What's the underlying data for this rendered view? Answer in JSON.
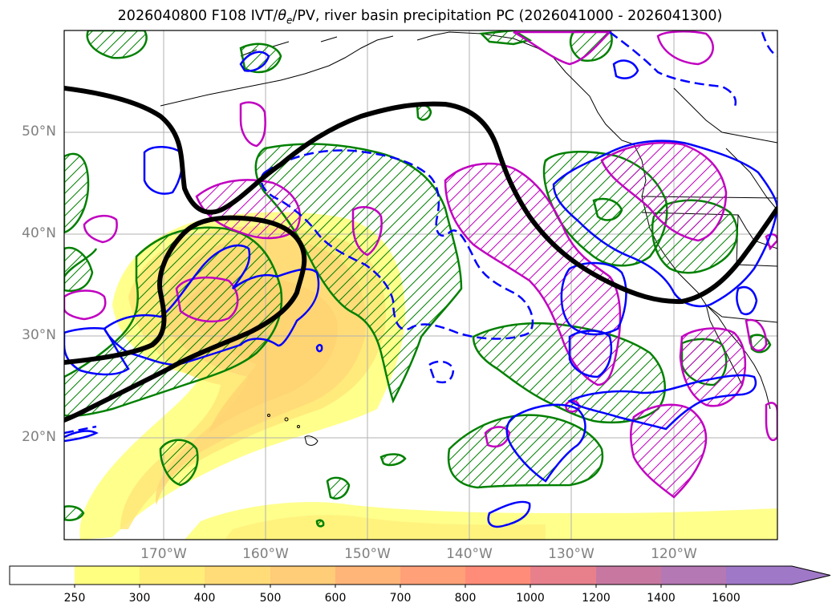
{
  "title": {
    "prefix": "2026040800 F108 IVT/",
    "theta": "θ",
    "theta_sub": "e",
    "suffix": "/PV, river basin precipitation PC (2026041000 - 2026041300)"
  },
  "map": {
    "lat_labels": [
      "50°N",
      "40°N",
      "30°N",
      "20°N"
    ],
    "lon_labels": [
      "170°W",
      "160°W",
      "150°W",
      "140°W",
      "130°W",
      "120°W"
    ],
    "colors": {
      "pv_line": "#000000",
      "green_contour": "#008000",
      "blue_contour": "#0000ff",
      "magenta_contour": "#c000c0",
      "ivt_250": "#ffff80",
      "ivt_300": "#ffe070",
      "ivt_400": "#ffd070"
    }
  },
  "colorbar": {
    "ticks": [
      "250",
      "300",
      "400",
      "500",
      "600",
      "700",
      "800",
      "1000",
      "1200",
      "1400",
      "1600"
    ],
    "colors": [
      "#ffffff",
      "#ffff80",
      "#ffee78",
      "#ffdc78",
      "#ffcc78",
      "#ffb478",
      "#ffa078",
      "#ff8c78",
      "#e8808c",
      "#c878a0",
      "#b478b4",
      "#a078c8"
    ]
  }
}
